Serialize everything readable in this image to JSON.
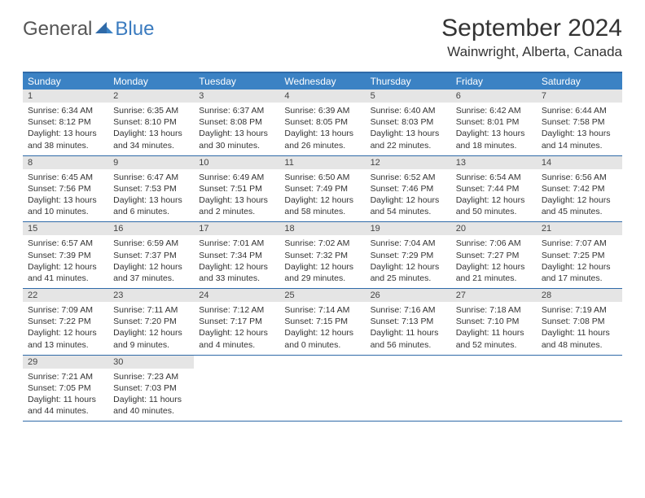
{
  "logo": {
    "text1": "General",
    "text2": "Blue"
  },
  "title": "September 2024",
  "location": "Wainwright, Alberta, Canada",
  "colors": {
    "header_bg": "#3b82c4",
    "header_border": "#2f6aa8",
    "daynum_bg": "#e5e5e5",
    "text": "#333333",
    "logo_gray": "#555555",
    "logo_blue": "#3b7bbf"
  },
  "dayNames": [
    "Sunday",
    "Monday",
    "Tuesday",
    "Wednesday",
    "Thursday",
    "Friday",
    "Saturday"
  ],
  "weeks": [
    [
      {
        "n": "1",
        "sr": "6:34 AM",
        "ss": "8:12 PM",
        "dl": "13 hours and 38 minutes."
      },
      {
        "n": "2",
        "sr": "6:35 AM",
        "ss": "8:10 PM",
        "dl": "13 hours and 34 minutes."
      },
      {
        "n": "3",
        "sr": "6:37 AM",
        "ss": "8:08 PM",
        "dl": "13 hours and 30 minutes."
      },
      {
        "n": "4",
        "sr": "6:39 AM",
        "ss": "8:05 PM",
        "dl": "13 hours and 26 minutes."
      },
      {
        "n": "5",
        "sr": "6:40 AM",
        "ss": "8:03 PM",
        "dl": "13 hours and 22 minutes."
      },
      {
        "n": "6",
        "sr": "6:42 AM",
        "ss": "8:01 PM",
        "dl": "13 hours and 18 minutes."
      },
      {
        "n": "7",
        "sr": "6:44 AM",
        "ss": "7:58 PM",
        "dl": "13 hours and 14 minutes."
      }
    ],
    [
      {
        "n": "8",
        "sr": "6:45 AM",
        "ss": "7:56 PM",
        "dl": "13 hours and 10 minutes."
      },
      {
        "n": "9",
        "sr": "6:47 AM",
        "ss": "7:53 PM",
        "dl": "13 hours and 6 minutes."
      },
      {
        "n": "10",
        "sr": "6:49 AM",
        "ss": "7:51 PM",
        "dl": "13 hours and 2 minutes."
      },
      {
        "n": "11",
        "sr": "6:50 AM",
        "ss": "7:49 PM",
        "dl": "12 hours and 58 minutes."
      },
      {
        "n": "12",
        "sr": "6:52 AM",
        "ss": "7:46 PM",
        "dl": "12 hours and 54 minutes."
      },
      {
        "n": "13",
        "sr": "6:54 AM",
        "ss": "7:44 PM",
        "dl": "12 hours and 50 minutes."
      },
      {
        "n": "14",
        "sr": "6:56 AM",
        "ss": "7:42 PM",
        "dl": "12 hours and 45 minutes."
      }
    ],
    [
      {
        "n": "15",
        "sr": "6:57 AM",
        "ss": "7:39 PM",
        "dl": "12 hours and 41 minutes."
      },
      {
        "n": "16",
        "sr": "6:59 AM",
        "ss": "7:37 PM",
        "dl": "12 hours and 37 minutes."
      },
      {
        "n": "17",
        "sr": "7:01 AM",
        "ss": "7:34 PM",
        "dl": "12 hours and 33 minutes."
      },
      {
        "n": "18",
        "sr": "7:02 AM",
        "ss": "7:32 PM",
        "dl": "12 hours and 29 minutes."
      },
      {
        "n": "19",
        "sr": "7:04 AM",
        "ss": "7:29 PM",
        "dl": "12 hours and 25 minutes."
      },
      {
        "n": "20",
        "sr": "7:06 AM",
        "ss": "7:27 PM",
        "dl": "12 hours and 21 minutes."
      },
      {
        "n": "21",
        "sr": "7:07 AM",
        "ss": "7:25 PM",
        "dl": "12 hours and 17 minutes."
      }
    ],
    [
      {
        "n": "22",
        "sr": "7:09 AM",
        "ss": "7:22 PM",
        "dl": "12 hours and 13 minutes."
      },
      {
        "n": "23",
        "sr": "7:11 AM",
        "ss": "7:20 PM",
        "dl": "12 hours and 9 minutes."
      },
      {
        "n": "24",
        "sr": "7:12 AM",
        "ss": "7:17 PM",
        "dl": "12 hours and 4 minutes."
      },
      {
        "n": "25",
        "sr": "7:14 AM",
        "ss": "7:15 PM",
        "dl": "12 hours and 0 minutes."
      },
      {
        "n": "26",
        "sr": "7:16 AM",
        "ss": "7:13 PM",
        "dl": "11 hours and 56 minutes."
      },
      {
        "n": "27",
        "sr": "7:18 AM",
        "ss": "7:10 PM",
        "dl": "11 hours and 52 minutes."
      },
      {
        "n": "28",
        "sr": "7:19 AM",
        "ss": "7:08 PM",
        "dl": "11 hours and 48 minutes."
      }
    ],
    [
      {
        "n": "29",
        "sr": "7:21 AM",
        "ss": "7:05 PM",
        "dl": "11 hours and 44 minutes."
      },
      {
        "n": "30",
        "sr": "7:23 AM",
        "ss": "7:03 PM",
        "dl": "11 hours and 40 minutes."
      },
      null,
      null,
      null,
      null,
      null
    ]
  ],
  "labels": {
    "sunrise": "Sunrise:",
    "sunset": "Sunset:",
    "daylight": "Daylight:"
  }
}
